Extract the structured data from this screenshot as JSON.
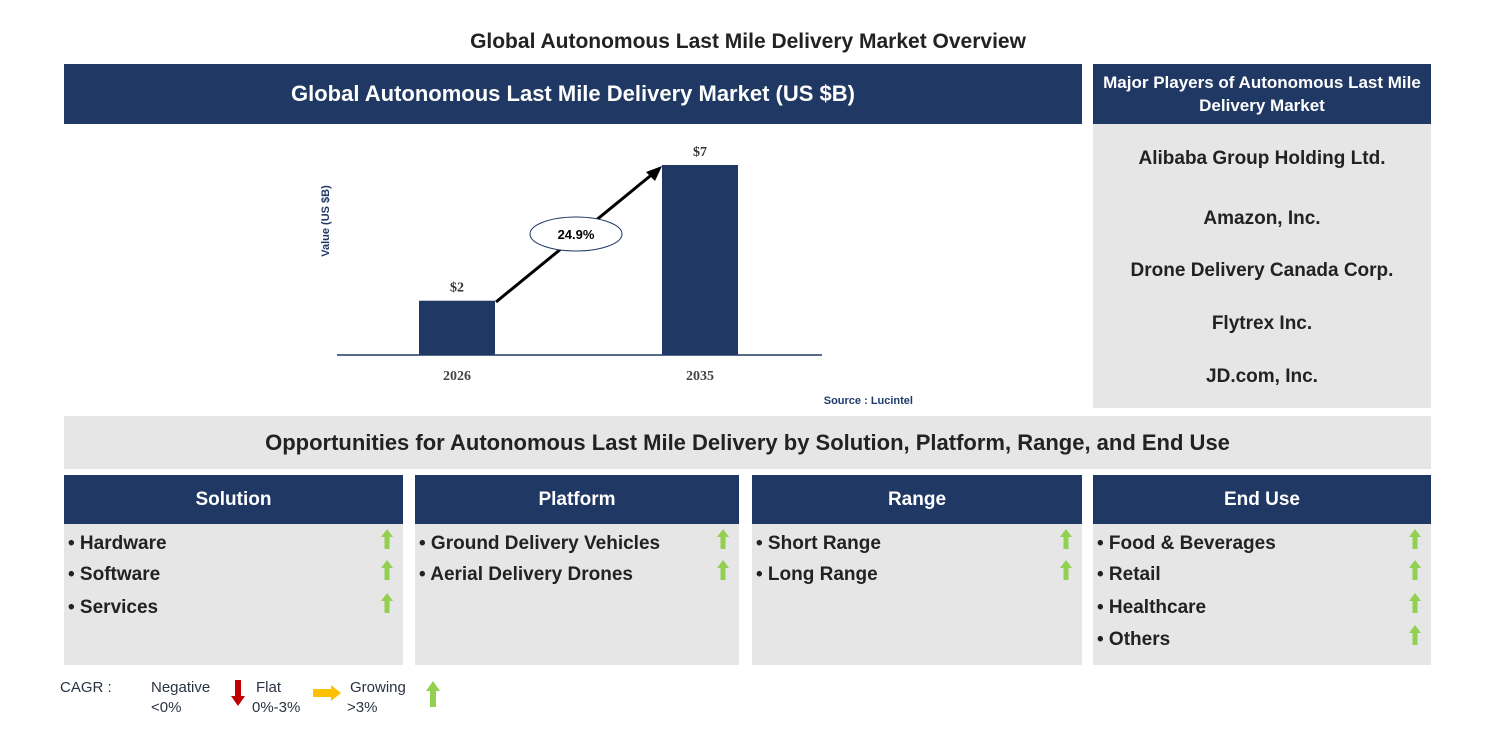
{
  "title": "Global Autonomous Last Mile Delivery Market Overview",
  "chart_header": "Global Autonomous Last Mile Delivery Market (US $B)",
  "players_header": "Major Players of Autonomous Last Mile Delivery Market",
  "players": [
    "Alibaba Group Holding Ltd.",
    "Amazon, Inc.",
    "Drone Delivery Canada Corp.",
    "Flytrex Inc.",
    "JD.com, Inc."
  ],
  "opportunities_title": "Opportunities for Autonomous Last Mile Delivery by Solution, Platform, Range, and End Use",
  "segments": [
    {
      "title": "Solution",
      "items": [
        "• Hardware",
        "• Software",
        "• Services"
      ]
    },
    {
      "title": "Platform",
      "items": [
        "• Ground Delivery Vehicles",
        "• Aerial Delivery Drones"
      ]
    },
    {
      "title": "Range",
      "items": [
        "• Short Range",
        "• Long Range"
      ]
    },
    {
      "title": "End Use",
      "items": [
        "• Food & Beverages",
        "• Retail",
        "• Healthcare",
        "• Others"
      ]
    }
  ],
  "legend": {
    "cagr": "CAGR :",
    "negative": "Negative",
    "negative_range": "<0%",
    "flat": "Flat",
    "flat_range": "0%-3%",
    "growing": "Growing",
    "growing_range": ">3%"
  },
  "colors": {
    "navy": "#203864",
    "grey": "#e7e6e6",
    "green": "#92d050",
    "red": "#c00000",
    "yellow": "#ffc000"
  },
  "chart_data": {
    "type": "bar",
    "categories": [
      "2026",
      "2035"
    ],
    "values": [
      2,
      7
    ],
    "labels": [
      "$2",
      "$7"
    ],
    "ylabel": "Value (US $B)",
    "cagr_label": "24.9%",
    "source": "Source : Lucintel",
    "ylim": [
      0,
      7
    ]
  }
}
